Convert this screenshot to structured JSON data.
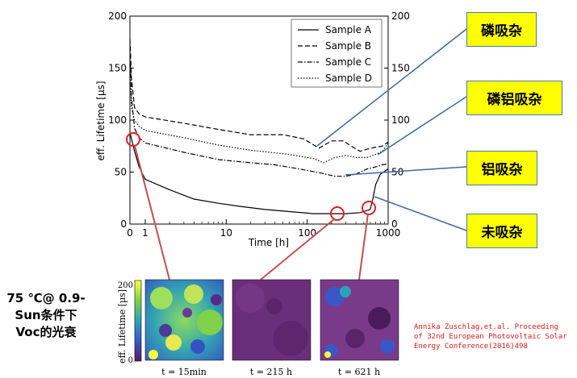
{
  "chart_data": {
    "type": "line",
    "xlabel": "Time [h]",
    "ylabel": "eff. Lifetime [µs]",
    "x_scale": "log-like (0 then log 1–1000)",
    "xlim": [
      0,
      1000
    ],
    "ylim": [
      0,
      200
    ],
    "x_ticks": [
      "0",
      "1",
      "10",
      "100",
      "1000"
    ],
    "y_ticks": [
      "0",
      "50",
      "100",
      "150",
      "200"
    ],
    "y_ticks_right": [
      "0",
      "50",
      "100",
      "150",
      "200"
    ],
    "grid": false,
    "legend_position": "top-right",
    "series": [
      {
        "name": "Sample A",
        "style": "solid",
        "points": [
          [
            0,
            88
          ],
          [
            0.1,
            82
          ],
          [
            0.3,
            70
          ],
          [
            0.6,
            55
          ],
          [
            1,
            43
          ],
          [
            2,
            33
          ],
          [
            4,
            24
          ],
          [
            8,
            20
          ],
          [
            15,
            17
          ],
          [
            30,
            14
          ],
          [
            60,
            12
          ],
          [
            120,
            10
          ],
          [
            200,
            10
          ],
          [
            300,
            10
          ],
          [
            450,
            11
          ],
          [
            600,
            14
          ],
          [
            650,
            25
          ],
          [
            700,
            38
          ],
          [
            800,
            48
          ],
          [
            1000,
            53
          ]
        ]
      },
      {
        "name": "Sample B",
        "style": "dashed",
        "points": [
          [
            0,
            178
          ],
          [
            0.1,
            140
          ],
          [
            0.3,
            112
          ],
          [
            0.6,
            106
          ],
          [
            1,
            103
          ],
          [
            3,
            97
          ],
          [
            8,
            91
          ],
          [
            20,
            86
          ],
          [
            50,
            86
          ],
          [
            90,
            82
          ],
          [
            140,
            73
          ],
          [
            200,
            80
          ],
          [
            280,
            80
          ],
          [
            350,
            75
          ],
          [
            450,
            70
          ],
          [
            550,
            72
          ],
          [
            700,
            74
          ],
          [
            850,
            75
          ],
          [
            1000,
            79
          ]
        ]
      },
      {
        "name": "Sample C",
        "style": "dashdot",
        "points": [
          [
            0,
            172
          ],
          [
            0.1,
            122
          ],
          [
            0.3,
            92
          ],
          [
            0.6,
            83
          ],
          [
            1,
            78
          ],
          [
            3,
            69
          ],
          [
            8,
            62
          ],
          [
            20,
            59
          ],
          [
            40,
            57
          ],
          [
            80,
            53
          ],
          [
            150,
            49
          ],
          [
            220,
            46
          ],
          [
            300,
            46
          ],
          [
            400,
            48
          ],
          [
            550,
            53
          ],
          [
            700,
            55
          ],
          [
            850,
            57
          ],
          [
            1000,
            58
          ]
        ]
      },
      {
        "name": "Sample D",
        "style": "dotted",
        "points": [
          [
            0,
            155
          ],
          [
            0.1,
            112
          ],
          [
            0.3,
            100
          ],
          [
            0.6,
            94
          ],
          [
            1,
            90
          ],
          [
            3,
            83
          ],
          [
            8,
            76
          ],
          [
            20,
            71
          ],
          [
            60,
            67
          ],
          [
            120,
            63
          ],
          [
            160,
            59
          ],
          [
            220,
            64
          ],
          [
            300,
            66
          ],
          [
            400,
            64
          ],
          [
            550,
            64
          ],
          [
            700,
            67
          ],
          [
            850,
            70
          ],
          [
            1000,
            78
          ]
        ]
      }
    ]
  },
  "callouts": [
    {
      "label": "磷吸杂"
    },
    {
      "label": "磷铝吸杂"
    },
    {
      "label": "铝吸杂"
    },
    {
      "label": "未吸杂"
    }
  ],
  "condition_lines": [
    "75 ℃@ 0.9-",
    "Sun条件下",
    "Voc的光衰"
  ],
  "maps": {
    "ylabel": "eff. Lifetime [µs]",
    "scale_max": "200",
    "scale_min": "0",
    "panels": [
      {
        "caption": "t = 15min"
      },
      {
        "caption": "t = 215 h"
      },
      {
        "caption": "t = 621 h"
      }
    ]
  },
  "reference_lines": [
    "Annika Zuschlag,et.al. Proceeding",
    "of 32nd European Photovoltaic Solar",
    "Energy Conference(2016)498"
  ],
  "colors": {
    "callout_fill": "#ffff00",
    "leader_line": "#3d6a9e",
    "marker_circle": "#e02020",
    "reference_text": "#d81818"
  }
}
